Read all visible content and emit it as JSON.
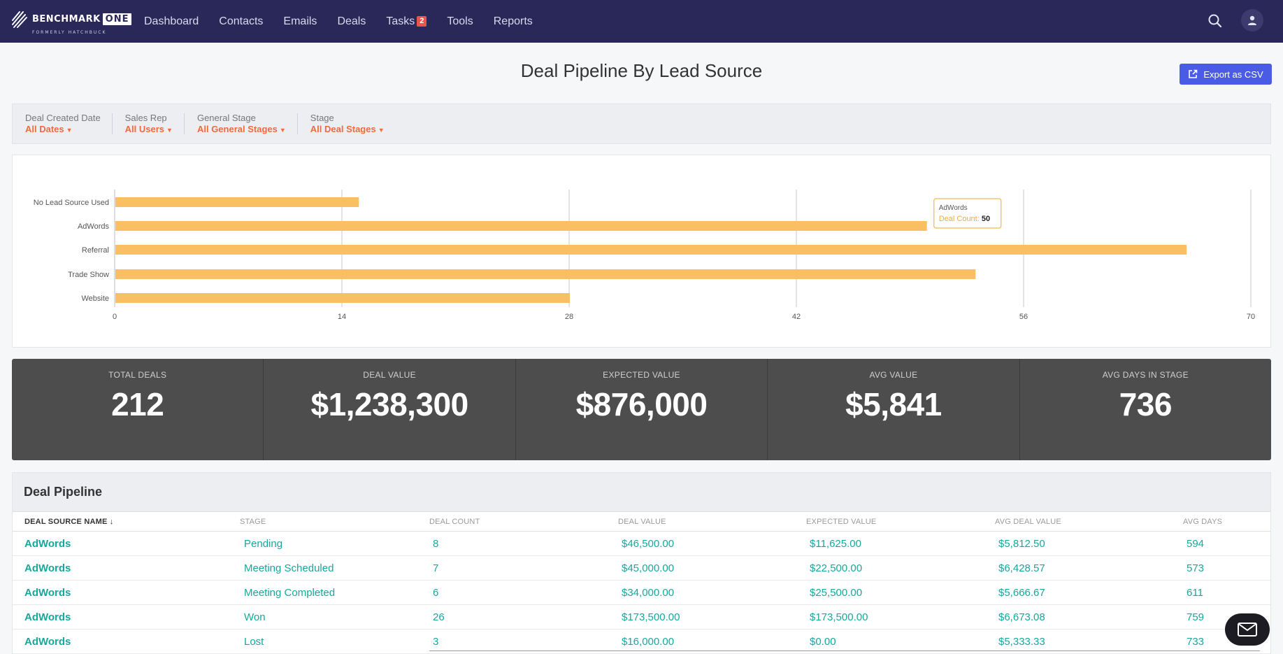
{
  "brand": {
    "name": "BENCHMARK",
    "name_box": "ONE",
    "tagline": "FORMERLY HATCHBUCK"
  },
  "nav": {
    "items": [
      {
        "label": "Dashboard"
      },
      {
        "label": "Contacts"
      },
      {
        "label": "Emails"
      },
      {
        "label": "Deals"
      },
      {
        "label": "Tasks",
        "badge": "2"
      },
      {
        "label": "Tools"
      },
      {
        "label": "Reports"
      }
    ],
    "search_icon": "search-icon",
    "user_icon": "user-icon"
  },
  "page": {
    "title": "Deal Pipeline By Lead Source",
    "export_label": "Export as CSV"
  },
  "filters": [
    {
      "label": "Deal Created Date",
      "value": "All Dates"
    },
    {
      "label": "Sales Rep",
      "value": "All Users"
    },
    {
      "label": "General Stage",
      "value": "All General Stages"
    },
    {
      "label": "Stage",
      "value": "All Deal Stages"
    }
  ],
  "chart_data": {
    "type": "bar",
    "orientation": "horizontal",
    "categories": [
      "No Lead Source Used",
      "AdWords",
      "Referral",
      "Trade Show",
      "Website"
    ],
    "values": [
      15,
      50,
      66,
      53,
      28
    ],
    "xlim": [
      0,
      70
    ],
    "xticks": [
      0,
      14,
      28,
      42,
      56,
      70
    ],
    "grid": true,
    "color": "#fbbf63",
    "tooltip": {
      "category": "AdWords",
      "series": "Deal Count",
      "value": "50"
    }
  },
  "stats": [
    {
      "label": "TOTAL DEALS",
      "value": "212"
    },
    {
      "label": "DEAL VALUE",
      "value": "$1,238,300"
    },
    {
      "label": "EXPECTED VALUE",
      "value": "$876,000"
    },
    {
      "label": "AVG VALUE",
      "value": "$5,841"
    },
    {
      "label": "AVG DAYS IN STAGE",
      "value": "736"
    }
  ],
  "table": {
    "title": "Deal Pipeline",
    "columns": [
      "DEAL SOURCE NAME",
      "STAGE",
      "DEAL COUNT",
      "DEAL VALUE",
      "EXPECTED VALUE",
      "AVG DEAL VALUE",
      "AVG DAYS"
    ],
    "sort_indicator": "↓",
    "rows": [
      [
        "AdWords",
        "Pending",
        "8",
        "$46,500.00",
        "$11,625.00",
        "$5,812.50",
        "594"
      ],
      [
        "AdWords",
        "Meeting Scheduled",
        "7",
        "$45,000.00",
        "$22,500.00",
        "$6,428.57",
        "573"
      ],
      [
        "AdWords",
        "Meeting Completed",
        "6",
        "$34,000.00",
        "$25,500.00",
        "$5,666.67",
        "611"
      ],
      [
        "AdWords",
        "Won",
        "26",
        "$173,500.00",
        "$173,500.00",
        "$6,673.08",
        "759"
      ],
      [
        "AdWords",
        "Lost",
        "3",
        "$16,000.00",
        "$0.00",
        "$5,333.33",
        "733"
      ]
    ]
  },
  "fab": {
    "icon": "mail-icon"
  }
}
